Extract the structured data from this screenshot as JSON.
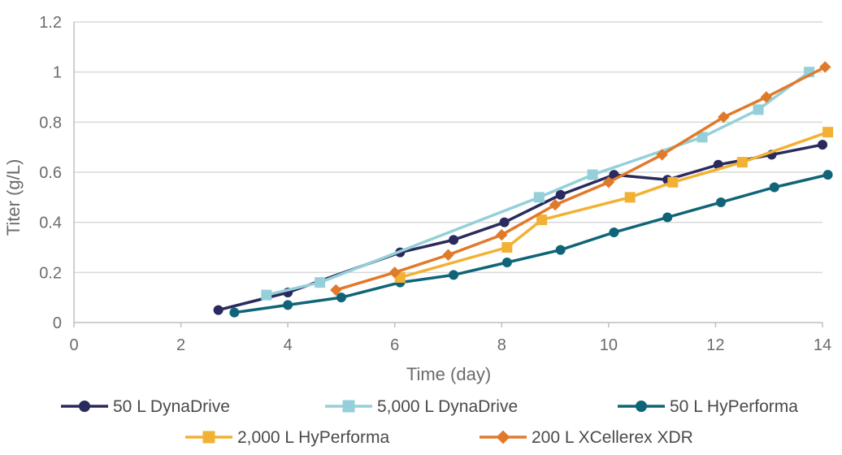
{
  "chart_data": {
    "type": "line",
    "title": "",
    "xlabel": "Time (day)",
    "ylabel": "Titer (g/L)",
    "xlim": [
      0,
      14
    ],
    "ylim": [
      0,
      1.2
    ],
    "xticks": [
      0,
      2,
      4,
      6,
      8,
      10,
      12,
      14
    ],
    "yticks": [
      0,
      0.2,
      0.4,
      0.6,
      0.8,
      1,
      1.2
    ],
    "xtick_labels": [
      "0",
      "2",
      "4",
      "6",
      "8",
      "10",
      "12",
      "14"
    ],
    "ytick_labels": [
      "0",
      "0.2",
      "0.4",
      "0.6",
      "0.8",
      "1",
      "1.2"
    ],
    "grid": "horizontal",
    "legend_position": "bottom",
    "series": [
      {
        "name": "50 L DynaDrive",
        "color": "#2a2a5e",
        "marker": "circle",
        "x": [
          2.7,
          4.0,
          6.1,
          7.1,
          8.05,
          9.1,
          10.1,
          11.1,
          12.05,
          13.05,
          14.0
        ],
        "y": [
          0.05,
          0.12,
          0.28,
          0.33,
          0.4,
          0.51,
          0.59,
          0.57,
          0.63,
          0.67,
          0.71
        ]
      },
      {
        "name": "5,000 L DynaDrive",
        "color": "#95d0da",
        "marker": "square",
        "x": [
          3.6,
          4.6,
          8.7,
          9.7,
          11.75,
          12.8,
          13.75
        ],
        "y": [
          0.11,
          0.16,
          0.5,
          0.59,
          0.74,
          0.85,
          1.0
        ]
      },
      {
        "name": "50 L HyPerforma",
        "color": "#0f6577",
        "marker": "circle",
        "x": [
          3.0,
          4.0,
          5.0,
          6.1,
          7.1,
          8.1,
          9.1,
          10.1,
          11.1,
          12.1,
          13.1,
          14.1
        ],
        "y": [
          0.04,
          0.07,
          0.1,
          0.16,
          0.19,
          0.24,
          0.29,
          0.36,
          0.42,
          0.48,
          0.54,
          0.59
        ]
      },
      {
        "name": "2,000 L HyPerforma",
        "color": "#f2b134",
        "marker": "square",
        "x": [
          6.1,
          8.1,
          8.75,
          10.4,
          11.2,
          12.5,
          14.1
        ],
        "y": [
          0.18,
          0.3,
          0.41,
          0.5,
          0.56,
          0.64,
          0.76
        ]
      },
      {
        "name": "200 L XCellerex XDR",
        "color": "#e07a2a",
        "marker": "diamond",
        "x": [
          4.9,
          6.0,
          7.0,
          8.0,
          9.0,
          10.0,
          11.0,
          12.15,
          12.95,
          14.05
        ],
        "y": [
          0.13,
          0.2,
          0.27,
          0.35,
          0.47,
          0.56,
          0.67,
          0.82,
          0.9,
          1.02
        ]
      }
    ]
  }
}
